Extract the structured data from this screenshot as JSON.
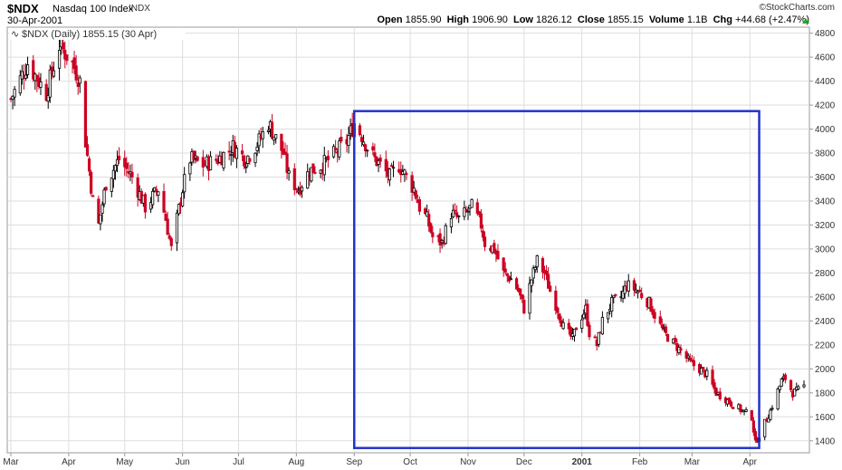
{
  "header": {
    "symbol": "$NDX",
    "name": "Nasdaq 100 Index",
    "exchange": "INDX",
    "date": "30-Apr-2001",
    "credit": "©StockCharts.com",
    "open_label": "Open",
    "open": "1855.90",
    "high_label": "High",
    "high": "1906.90",
    "low_label": "Low",
    "low": "1826.12",
    "close_label": "Close",
    "close": "1855.15",
    "volume_label": "Volume",
    "volume": "1.1B",
    "chg_label": "Chg",
    "chg": "+44.68 (+2.47%)"
  },
  "legend": "$NDX (Daily) 1855.15 (30 Apr)",
  "colors": {
    "up": "#000000",
    "down": "#cc0022",
    "box": "#2233cc",
    "grid": "#dddddd"
  },
  "chart_data": {
    "type": "candlestick",
    "ylim": [
      1300,
      4850
    ],
    "y_ticks": [
      1400,
      1600,
      1800,
      2000,
      2200,
      2400,
      2600,
      2800,
      3000,
      3200,
      3400,
      3600,
      3800,
      4000,
      4200,
      4400,
      4600,
      4800
    ],
    "x_range": [
      "2000-03-01",
      "2001-04-30"
    ],
    "month_ticks": [
      {
        "label": "Mar",
        "date": "2000-03-01"
      },
      {
        "label": "Apr",
        "date": "2000-04-01"
      },
      {
        "label": "May",
        "date": "2000-05-01"
      },
      {
        "label": "Jun",
        "date": "2000-06-01"
      },
      {
        "label": "Jul",
        "date": "2000-07-01"
      },
      {
        "label": "Aug",
        "date": "2000-08-01"
      },
      {
        "label": "Sep",
        "date": "2000-09-01"
      },
      {
        "label": "Oct",
        "date": "2000-10-01"
      },
      {
        "label": "Nov",
        "date": "2000-11-01"
      },
      {
        "label": "Dec",
        "date": "2000-12-01"
      },
      {
        "label": "2001",
        "date": "2001-01-01",
        "bold": true
      },
      {
        "label": "Feb",
        "date": "2001-02-01"
      },
      {
        "label": "Mar",
        "date": "2001-03-01"
      },
      {
        "label": "Apr",
        "date": "2001-04-01"
      }
    ],
    "close_path": [
      [
        "2000-03-01",
        4250
      ],
      [
        "2000-03-10",
        4550
      ],
      [
        "2000-03-20",
        4300
      ],
      [
        "2000-03-27",
        4700
      ],
      [
        "2000-04-03",
        4550
      ],
      [
        "2000-04-07",
        4400
      ],
      [
        "2000-04-10",
        3900
      ],
      [
        "2000-04-14",
        3400
      ],
      [
        "2000-04-17",
        3200
      ],
      [
        "2000-04-21",
        3550
      ],
      [
        "2000-04-28",
        3750
      ],
      [
        "2000-05-05",
        3600
      ],
      [
        "2000-05-12",
        3350
      ],
      [
        "2000-05-19",
        3500
      ],
      [
        "2000-05-23",
        3250
      ],
      [
        "2000-05-26",
        3000
      ],
      [
        "2000-06-01",
        3500
      ],
      [
        "2000-06-05",
        3750
      ],
      [
        "2000-06-12",
        3700
      ],
      [
        "2000-06-20",
        3750
      ],
      [
        "2000-06-28",
        3850
      ],
      [
        "2000-07-05",
        3750
      ],
      [
        "2000-07-12",
        3900
      ],
      [
        "2000-07-17",
        4050
      ],
      [
        "2000-07-20",
        3950
      ],
      [
        "2000-07-25",
        3800
      ],
      [
        "2000-07-28",
        3600
      ],
      [
        "2000-08-02",
        3500
      ],
      [
        "2000-08-08",
        3650
      ],
      [
        "2000-08-15",
        3700
      ],
      [
        "2000-08-22",
        3800
      ],
      [
        "2000-08-28",
        3900
      ],
      [
        "2000-09-01",
        4050
      ],
      [
        "2000-09-05",
        3950
      ],
      [
        "2000-09-08",
        3850
      ],
      [
        "2000-09-12",
        3750
      ],
      [
        "2000-09-15",
        3700
      ],
      [
        "2000-09-20",
        3600
      ],
      [
        "2000-09-25",
        3700
      ],
      [
        "2000-09-29",
        3600
      ],
      [
        "2000-10-03",
        3500
      ],
      [
        "2000-10-06",
        3350
      ],
      [
        "2000-10-10",
        3250
      ],
      [
        "2000-10-13",
        3100
      ],
      [
        "2000-10-18",
        3050
      ],
      [
        "2000-10-23",
        3300
      ],
      [
        "2000-10-27",
        3250
      ],
      [
        "2000-10-31",
        3300
      ],
      [
        "2000-11-03",
        3350
      ],
      [
        "2000-11-08",
        3200
      ],
      [
        "2000-11-10",
        3050
      ],
      [
        "2000-11-15",
        3000
      ],
      [
        "2000-11-20",
        2800
      ],
      [
        "2000-11-24",
        2750
      ],
      [
        "2000-11-28",
        2650
      ],
      [
        "2000-12-01",
        2500
      ],
      [
        "2000-12-05",
        2750
      ],
      [
        "2000-12-08",
        2900
      ],
      [
        "2000-12-12",
        2800
      ],
      [
        "2000-12-15",
        2650
      ],
      [
        "2000-12-19",
        2500
      ],
      [
        "2000-12-22",
        2350
      ],
      [
        "2000-12-27",
        2250
      ],
      [
        "2000-12-29",
        2350
      ],
      [
        "2001-01-03",
        2500
      ],
      [
        "2001-01-05",
        2300
      ],
      [
        "2001-01-09",
        2200
      ],
      [
        "2001-01-12",
        2400
      ],
      [
        "2001-01-17",
        2550
      ],
      [
        "2001-01-22",
        2600
      ],
      [
        "2001-01-25",
        2700
      ],
      [
        "2001-01-31",
        2650
      ],
      [
        "2001-02-06",
        2550
      ],
      [
        "2001-02-09",
        2450
      ],
      [
        "2001-02-14",
        2300
      ],
      [
        "2001-02-20",
        2200
      ],
      [
        "2001-02-23",
        2150
      ],
      [
        "2001-02-28",
        2050
      ],
      [
        "2001-03-05",
        2000
      ],
      [
        "2001-03-09",
        1950
      ],
      [
        "2001-03-14",
        1800
      ],
      [
        "2001-03-19",
        1750
      ],
      [
        "2001-03-23",
        1700
      ],
      [
        "2001-03-28",
        1650
      ],
      [
        "2001-04-02",
        1600
      ],
      [
        "2001-04-04",
        1380
      ],
      [
        "2001-04-09",
        1550
      ],
      [
        "2001-04-12",
        1650
      ],
      [
        "2001-04-18",
        1900
      ],
      [
        "2001-04-20",
        1920
      ],
      [
        "2001-04-24",
        1800
      ],
      [
        "2001-04-27",
        1820
      ],
      [
        "2001-04-30",
        1855
      ]
    ],
    "annotation_box": {
      "x": [
        "2000-09-01",
        "2001-04-06"
      ],
      "y": [
        1340,
        4150
      ]
    }
  }
}
